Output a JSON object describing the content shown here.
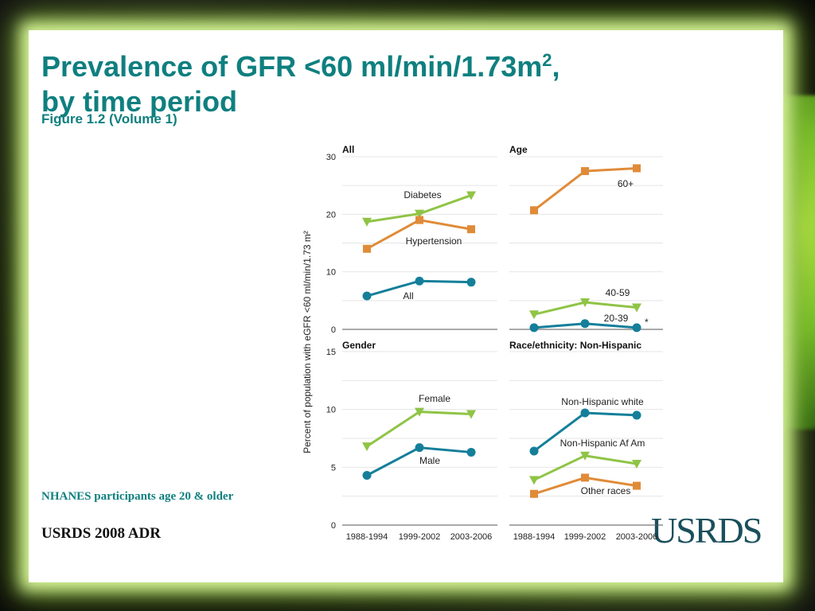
{
  "slide": {
    "title_line1": "Prevalence of GFR <60 ml/min/1.73m",
    "title_sup": "2",
    "title_comma": ",",
    "title_line2": "by time period",
    "subtitle": "Figure 1.2 (Volume 1)",
    "note": "NHANES participants age 20 & older",
    "source": "USRDS 2008 ADR",
    "logo": "USRDS"
  },
  "colors": {
    "teal": "#147f9a",
    "orange": "#e08b38",
    "green": "#8fc446"
  },
  "chart_data": [
    {
      "type": "line",
      "title": "All",
      "categories": [
        "1988-1994",
        "1999-2002",
        "2003-2006"
      ],
      "ylim": [
        0,
        30
      ],
      "yticks": [
        0,
        10,
        20,
        30
      ],
      "ylabel": "Percent of population with eGFR <60 ml/min/1.73 m²",
      "series": [
        {
          "name": "Diabetes",
          "marker": "triangle",
          "color": "green",
          "values": [
            18.7,
            20.1,
            23.3
          ]
        },
        {
          "name": "Hypertension",
          "marker": "square",
          "color": "orange",
          "values": [
            14.0,
            19.0,
            17.4
          ]
        },
        {
          "name": "All",
          "marker": "circle",
          "color": "teal",
          "values": [
            5.8,
            8.4,
            8.2
          ]
        }
      ]
    },
    {
      "type": "line",
      "title": "Age",
      "categories": [
        "1988-1994",
        "1999-2002",
        "2003-2006"
      ],
      "ylim": [
        0,
        30
      ],
      "series": [
        {
          "name": "60+",
          "marker": "square",
          "color": "orange",
          "values": [
            20.7,
            27.5,
            28.0
          ]
        },
        {
          "name": "40-59",
          "marker": "triangle",
          "color": "green",
          "values": [
            2.6,
            4.7,
            3.8
          ]
        },
        {
          "name": "20-39",
          "marker": "circle",
          "color": "teal",
          "values": [
            0.3,
            1.0,
            0.3
          ]
        }
      ],
      "annotation": "*"
    },
    {
      "type": "line",
      "title": "Gender",
      "categories": [
        "1988-1994",
        "1999-2002",
        "2003-2006"
      ],
      "ylim": [
        0,
        15
      ],
      "yticks": [
        0,
        5,
        10,
        15
      ],
      "series": [
        {
          "name": "Female",
          "marker": "triangle",
          "color": "green",
          "values": [
            6.8,
            9.8,
            9.6
          ]
        },
        {
          "name": "Male",
          "marker": "circle",
          "color": "teal",
          "values": [
            4.3,
            6.7,
            6.3
          ]
        }
      ]
    },
    {
      "type": "line",
      "title": "Race/ethnicity: Non-Hispanic",
      "categories": [
        "1988-1994",
        "1999-2002",
        "2003-2006"
      ],
      "ylim": [
        0,
        15
      ],
      "series": [
        {
          "name": "Non-Hispanic white",
          "marker": "circle",
          "color": "teal",
          "values": [
            6.4,
            9.7,
            9.5
          ]
        },
        {
          "name": "Non-Hispanic Af Am",
          "marker": "triangle",
          "color": "green",
          "values": [
            3.9,
            6.0,
            5.3
          ]
        },
        {
          "name": "Other races",
          "marker": "square",
          "color": "orange",
          "values": [
            2.7,
            4.1,
            3.4
          ]
        }
      ]
    }
  ]
}
